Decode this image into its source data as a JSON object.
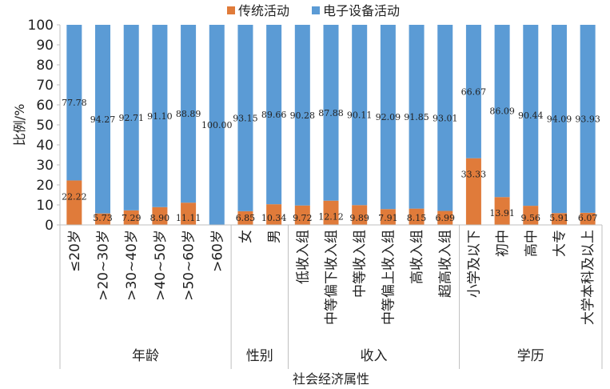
{
  "chart_data": {
    "type": "bar",
    "stacked": true,
    "xlabel": "社会经济属性",
    "ylabel": "比例/%",
    "ylim": [
      0,
      100
    ],
    "yticks": [
      0,
      10,
      20,
      30,
      40,
      50,
      60,
      70,
      80,
      90,
      100
    ],
    "legend_position": "top",
    "grid": false,
    "categories": [
      "≤20岁",
      ">20~30岁",
      ">30~40岁",
      ">40~50岁",
      ">50~60岁",
      ">60岁",
      "女",
      "男",
      "低收入组",
      "中等偏下收入组",
      "中等收入组",
      "中等偏上收入组",
      "高收入组",
      "超高收入组",
      "小学及以下",
      "初中",
      "高中",
      "大专",
      "大学本科及以上"
    ],
    "groups": [
      {
        "label": "年龄",
        "start": 0,
        "end": 5
      },
      {
        "label": "性别",
        "start": 6,
        "end": 7
      },
      {
        "label": "收入",
        "start": 8,
        "end": 13
      },
      {
        "label": "学历",
        "start": 14,
        "end": 18
      }
    ],
    "series": [
      {
        "name": "传统活动",
        "color": "#E07B3A",
        "values": [
          22.22,
          5.73,
          7.29,
          8.9,
          11.11,
          0,
          6.85,
          10.34,
          9.72,
          12.12,
          9.89,
          7.91,
          8.15,
          6.99,
          33.33,
          13.91,
          9.56,
          5.91,
          6.07
        ],
        "labels": [
          "22.22",
          "5.73",
          "7.29",
          "8.90",
          "11.11",
          "",
          "6.85",
          "10.34",
          "9.72",
          "12.12",
          "9.89",
          "7.91",
          "8.15",
          "6.99",
          "33.33",
          "13.91",
          "9.56",
          "5.91",
          "6.07"
        ]
      },
      {
        "name": "电子设备活动",
        "color": "#5B9BD5",
        "values": [
          77.78,
          94.27,
          92.71,
          91.1,
          88.89,
          100.0,
          93.15,
          89.66,
          90.28,
          87.88,
          90.11,
          92.09,
          91.85,
          93.01,
          66.67,
          86.09,
          90.44,
          94.09,
          93.93
        ],
        "labels": [
          "77.78",
          "94.27",
          "92.71",
          "91.10",
          "88.89",
          "100.00",
          "93.15",
          "89.66",
          "90.28",
          "87.88",
          "90.11",
          "92.09",
          "91.85",
          "93.01",
          "66.67",
          "86.09",
          "90.44",
          "94.09",
          "93.93"
        ]
      }
    ]
  }
}
